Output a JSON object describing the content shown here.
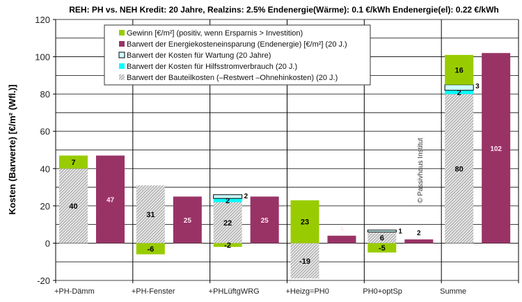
{
  "chart_data": {
    "type": "bar",
    "title": "REH: PH vs. NEH Kredit: 20 Jahre,  Realzins: 2.5%  Endenergie(Wärme): 0.1 €/kWh  Endenergie(el): 0.22 €/kWh",
    "ylabel": "Kosten (Barwerte)  [€/m² (Wfl.)]",
    "xlabel": "",
    "ylim": [
      -20,
      120
    ],
    "yticks": [
      -20,
      0,
      20,
      40,
      60,
      80,
      100,
      120
    ],
    "grid": true,
    "legend_position": "top-center",
    "watermark": "© Passivhaus Institut",
    "categories": [
      "+PH-Dämm",
      "+PH-Fenster",
      "+PHLüftgWRG",
      "+Heizg=PH0",
      "PH0+optSp",
      "Summe"
    ],
    "series": [
      {
        "name": "Gewinn  [€/m²]    (positiv, wenn Ersparnis > Investition)",
        "key": "gewinn",
        "color": "#99cc00",
        "values": [
          7,
          -6,
          -2,
          23,
          -5,
          16
        ]
      },
      {
        "name": "Barwert der Energiekosteneinsparung (Endenergie) [€/m²]    (20 J.)",
        "key": "energie",
        "color": "#993366",
        "values": [
          47,
          25,
          25,
          4,
          2,
          102
        ]
      },
      {
        "name": "Barwert der Kosten für  Wartung (20 Jahre)",
        "key": "wartung",
        "color": "#ccffff",
        "values": [
          0,
          0,
          2,
          0,
          1,
          3
        ]
      },
      {
        "name": "Barwert der Kosten für  Hilfsstromverbrauch (20 J.)",
        "key": "hilfsstrom",
        "color": "#00ffff",
        "values": [
          0,
          0,
          2,
          0,
          0,
          2
        ]
      },
      {
        "name": "Barwert der Bauteilkosten (–Restwert –Ohnehinkosten)  (20 J.)",
        "key": "bauteil",
        "color": "#bbbbbb",
        "values": [
          40,
          31,
          22,
          -19,
          6,
          80
        ]
      }
    ],
    "value_labels": {
      "gewinn": [
        "7",
        "-6",
        "-2",
        "23",
        "-5",
        "16"
      ],
      "energie": [
        "47",
        "25",
        "25",
        "4",
        "2",
        "102"
      ],
      "wartung": [
        "",
        "",
        "2",
        "",
        "1",
        "3"
      ],
      "hilfsstrom": [
        "",
        "",
        "2",
        "",
        "",
        "2"
      ],
      "bauteil": [
        "40",
        "31",
        "22",
        "-19",
        "6",
        "80"
      ]
    }
  }
}
